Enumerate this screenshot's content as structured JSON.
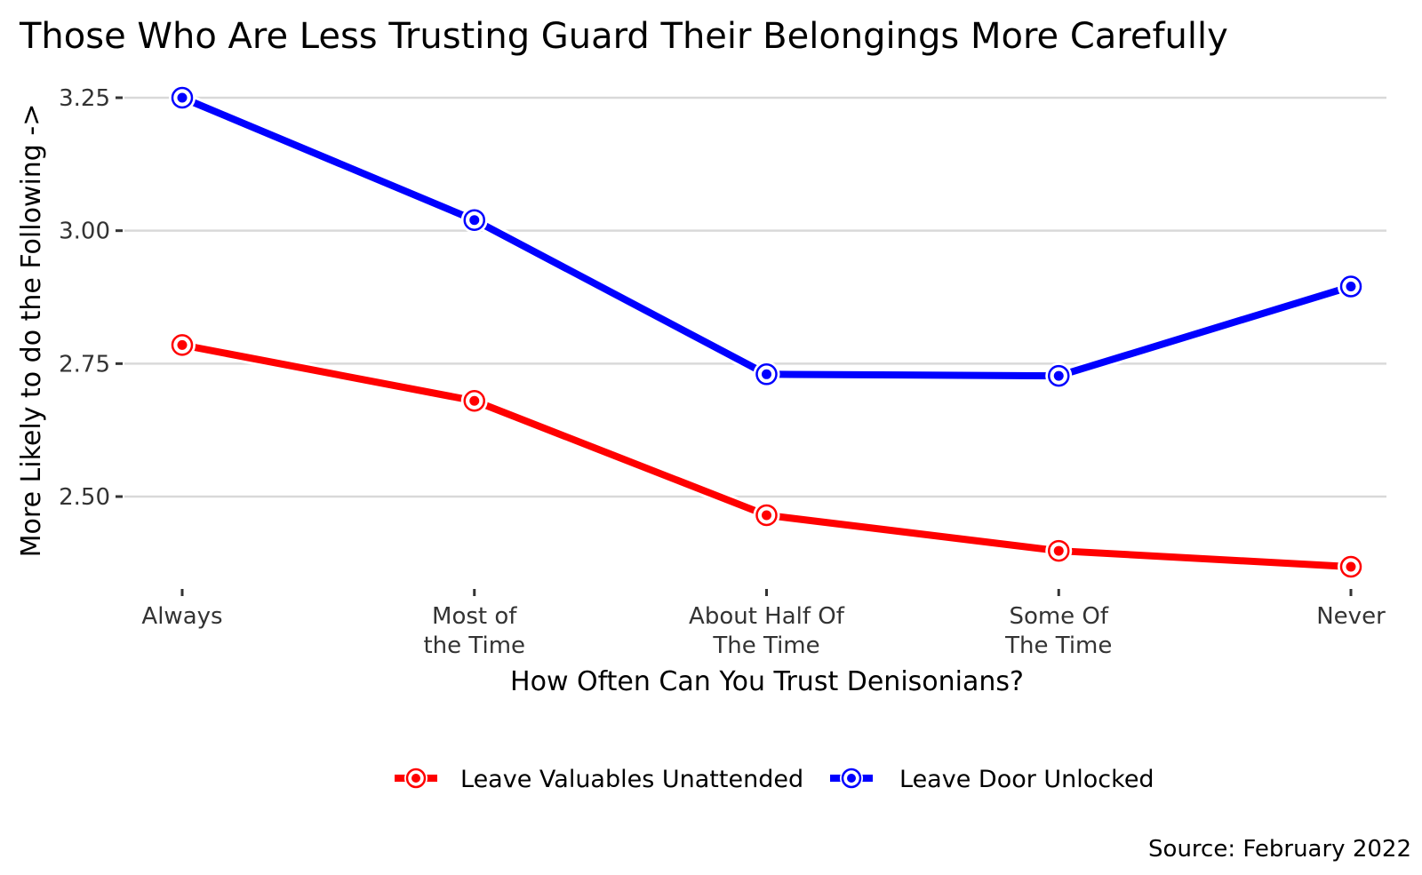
{
  "chart_data": {
    "type": "line",
    "title": "Those Who Are Less Trusting Guard Their Belongings More Carefully",
    "xlabel": "How Often Can You Trust Denisonians?",
    "ylabel": "More Likely to do the Following ->",
    "caption": "Source: February 2022",
    "categories": [
      [
        "Always"
      ],
      [
        "Most of",
        "the Time"
      ],
      [
        "About Half Of",
        "The Time"
      ],
      [
        "Some Of",
        "The Time"
      ],
      [
        "Never"
      ]
    ],
    "yticks": [
      2.5,
      2.75,
      3.0,
      3.25
    ],
    "ytick_labels": [
      "2.50",
      "2.75",
      "3.00",
      "3.25"
    ],
    "ylim": [
      2.34,
      3.26
    ],
    "legend_position": "bottom",
    "series": [
      {
        "name": "Leave Valuables Unattended",
        "color": "#ff0000",
        "values": [
          2.785,
          2.68,
          2.465,
          2.398,
          2.368
        ]
      },
      {
        "name": "Leave Door Unlocked",
        "color": "#0000ff",
        "values": [
          3.25,
          3.02,
          2.73,
          2.727,
          2.895
        ]
      }
    ]
  }
}
